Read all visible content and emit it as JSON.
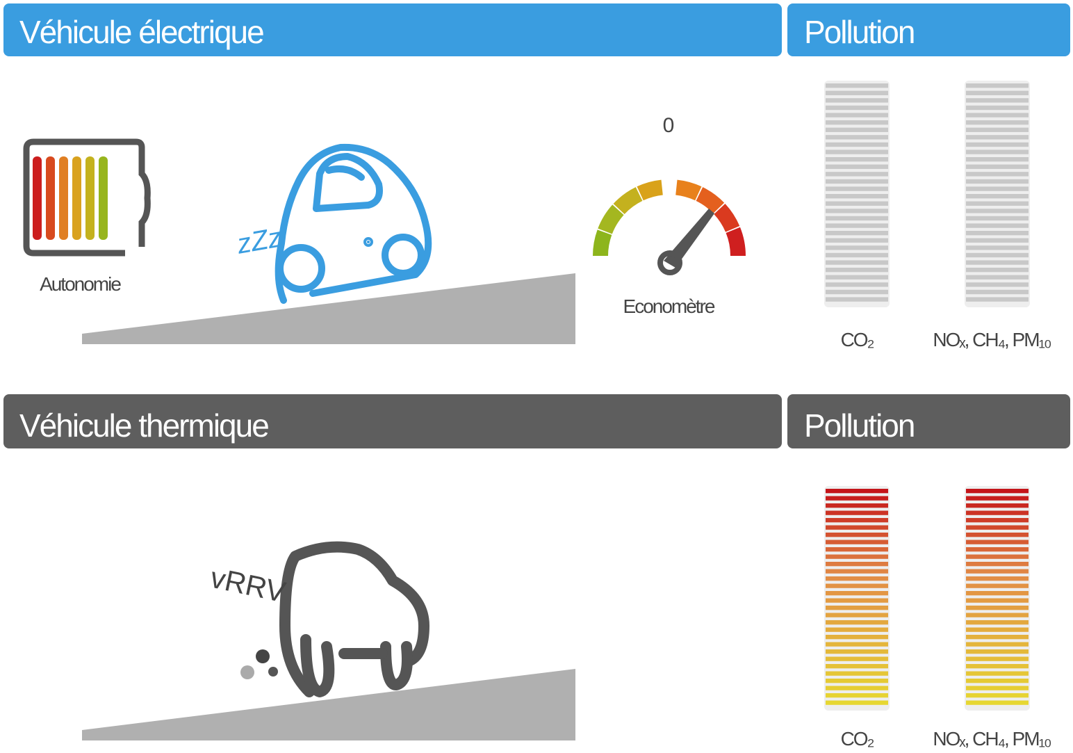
{
  "electric": {
    "header": "Véhicule électrique",
    "pollution_header": "Pollution",
    "battery_label": "Autonomie",
    "sound": "zZz",
    "gauge_zero": "0",
    "gauge_label": "Economètre",
    "bar_labels": [
      "CO₂",
      "NOₓ, CH₄, PM₁₀"
    ]
  },
  "thermal": {
    "header": "Véhicule thermique",
    "pollution_header": "Pollution",
    "sound": "vRRV",
    "bar_labels": [
      "CO₂",
      "NOₓ, CH₄, PM₁₀"
    ]
  }
}
